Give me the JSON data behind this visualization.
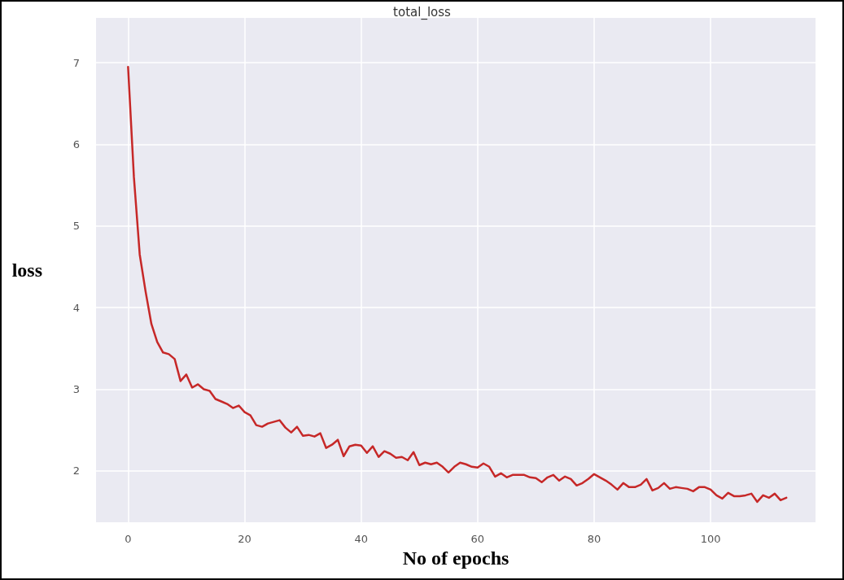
{
  "chart_data": {
    "type": "line",
    "title": "total_loss",
    "xlabel": "No of epochs",
    "ylabel": "loss",
    "x": [
      0,
      1,
      2,
      3,
      4,
      5,
      6,
      7,
      8,
      9,
      10,
      11,
      12,
      13,
      14,
      15,
      16,
      17,
      18,
      19,
      20,
      21,
      22,
      23,
      24,
      25,
      26,
      27,
      28,
      29,
      30,
      31,
      32,
      33,
      34,
      35,
      36,
      37,
      38,
      39,
      40,
      41,
      42,
      43,
      44,
      45,
      46,
      47,
      48,
      49,
      50,
      51,
      52,
      53,
      54,
      55,
      56,
      57,
      58,
      59,
      60,
      61,
      62,
      63,
      64,
      65,
      66,
      67,
      68,
      69,
      70,
      71,
      72,
      73,
      74,
      75,
      76,
      77,
      78,
      79,
      80,
      81,
      82,
      83,
      84,
      85,
      86,
      87,
      88,
      89,
      90,
      91,
      92,
      93,
      94,
      95,
      96,
      97,
      98,
      99,
      100,
      101,
      102,
      103,
      104,
      105,
      106,
      107,
      108,
      109,
      110,
      111,
      112,
      113
    ],
    "series": [
      {
        "color": "#c62828",
        "values": [
          6.95,
          5.6,
          4.65,
          4.2,
          3.8,
          3.58,
          3.45,
          3.43,
          3.37,
          3.1,
          3.18,
          3.02,
          3.06,
          3.0,
          2.98,
          2.88,
          2.85,
          2.82,
          2.77,
          2.8,
          2.72,
          2.68,
          2.56,
          2.54,
          2.58,
          2.6,
          2.62,
          2.53,
          2.47,
          2.54,
          2.43,
          2.44,
          2.42,
          2.46,
          2.28,
          2.32,
          2.38,
          2.18,
          2.3,
          2.32,
          2.31,
          2.22,
          2.3,
          2.17,
          2.24,
          2.21,
          2.16,
          2.17,
          2.13,
          2.23,
          2.07,
          2.1,
          2.08,
          2.1,
          2.05,
          1.98,
          2.05,
          2.1,
          2.08,
          2.05,
          2.04,
          2.09,
          2.05,
          1.93,
          1.97,
          1.92,
          1.95,
          1.95,
          1.95,
          1.92,
          1.91,
          1.86,
          1.92,
          1.95,
          1.88,
          1.93,
          1.9,
          1.82,
          1.85,
          1.9,
          1.96,
          1.92,
          1.88,
          1.83,
          1.77,
          1.85,
          1.8,
          1.8,
          1.83,
          1.9,
          1.76,
          1.79,
          1.85,
          1.78,
          1.8,
          1.79,
          1.78,
          1.75,
          1.8,
          1.8,
          1.77,
          1.7,
          1.66,
          1.73,
          1.69,
          1.69,
          1.7,
          1.72,
          1.62,
          1.7,
          1.67,
          1.72,
          1.64,
          1.67
        ]
      }
    ],
    "xlim": [
      -5.5,
      118
    ],
    "ylim": [
      1.37,
      7.55
    ],
    "xticks": [
      0,
      20,
      40,
      60,
      80,
      100
    ],
    "yticks": [
      2,
      3,
      4,
      5,
      6,
      7
    ],
    "grid": true,
    "marker": "none",
    "line_style": "solid"
  }
}
